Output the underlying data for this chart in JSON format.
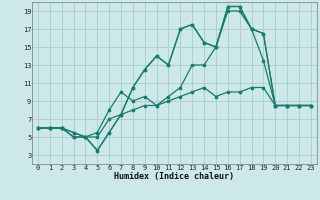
{
  "xlabel": "Humidex (Indice chaleur)",
  "bg_color": "#cce8e8",
  "grid_color": "#aacccc",
  "line_color": "#1a7a6e",
  "xlim": [
    -0.5,
    23.5
  ],
  "ylim": [
    2,
    20
  ],
  "xticks": [
    0,
    1,
    2,
    3,
    4,
    5,
    6,
    7,
    8,
    9,
    10,
    11,
    12,
    13,
    14,
    15,
    16,
    17,
    18,
    19,
    20,
    21,
    22,
    23
  ],
  "yticks": [
    3,
    5,
    7,
    9,
    11,
    13,
    15,
    17,
    19
  ],
  "series": [
    {
      "x": [
        0,
        1,
        2,
        3,
        4,
        5,
        6,
        7,
        8,
        9,
        10,
        11,
        12,
        13,
        14,
        15,
        16,
        17,
        18,
        19,
        20,
        21,
        22,
        23
      ],
      "y": [
        6,
        6,
        6,
        5,
        5,
        5,
        7,
        7.5,
        8,
        8.5,
        8.5,
        9,
        9.5,
        10,
        10.5,
        9.5,
        10,
        10,
        10.5,
        10.5,
        8.5,
        8.5,
        8.5,
        8.5
      ]
    },
    {
      "x": [
        0,
        1,
        2,
        3,
        4,
        5,
        6,
        7,
        8,
        9,
        10,
        11,
        12,
        13,
        14,
        15,
        16,
        17,
        18,
        19,
        20,
        21,
        22,
        23
      ],
      "y": [
        6,
        6,
        6,
        5,
        5,
        5.5,
        8,
        10,
        9,
        9.5,
        8.5,
        9.5,
        10.5,
        13,
        13,
        15,
        19,
        19,
        17,
        13.5,
        8.5,
        8.5,
        8.5,
        8.5
      ]
    },
    {
      "x": [
        0,
        1,
        2,
        3,
        4,
        5,
        6,
        7,
        8,
        9,
        10,
        11,
        12,
        13,
        14,
        15,
        16,
        17,
        18,
        19,
        20,
        21,
        22,
        23
      ],
      "y": [
        6,
        6,
        6,
        5.5,
        5,
        3.5,
        5.5,
        7.5,
        10.5,
        12.5,
        14,
        13,
        17,
        17.5,
        15.5,
        15,
        19.5,
        19.5,
        17,
        16.5,
        8.5,
        8.5,
        8.5,
        8.5
      ]
    },
    {
      "x": [
        0,
        1,
        2,
        3,
        4,
        5,
        6,
        7,
        8,
        9,
        10,
        11,
        12,
        13,
        14,
        15,
        16,
        17,
        18,
        19,
        20,
        21,
        22,
        23
      ],
      "y": [
        6,
        6,
        6,
        5.5,
        5,
        3.5,
        5.5,
        7.5,
        10.5,
        12.5,
        14,
        13,
        17,
        17.5,
        15.5,
        15,
        19.5,
        19.5,
        17,
        16.5,
        8.5,
        8.5,
        8.5,
        8.5
      ]
    }
  ]
}
